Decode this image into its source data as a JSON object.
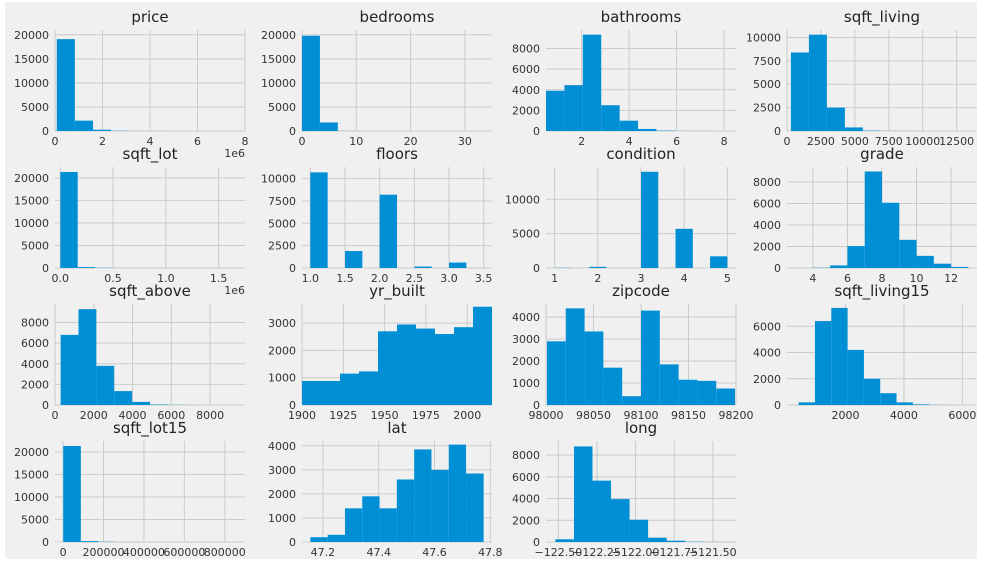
{
  "figure": {
    "background": "#f0f0f0",
    "axes_background": "#f0f0f0",
    "grid_color": "#cbcbcb",
    "bar_color": "#008fd5",
    "style": "fivethirtyeight"
  },
  "chart_data": [
    {
      "type": "bar",
      "title": "price",
      "bin_edges": [
        75000,
        837500,
        1600000,
        2362500,
        3125000,
        3887500,
        4650000,
        5412500,
        6175000,
        6937500,
        7700000
      ],
      "counts": [
        19100,
        2150,
        270,
        50,
        10,
        5,
        3,
        2,
        1,
        1
      ],
      "xlim": [
        0,
        8000000
      ],
      "ylim": [
        0,
        21000
      ],
      "xticks": [
        0,
        2000000,
        4000000,
        6000000,
        8000000
      ],
      "xticklabels": [
        "0",
        "2",
        "4",
        "6",
        "8"
      ],
      "yticks": [
        0,
        5000,
        10000,
        15000,
        20000
      ],
      "yticklabels": [
        "0",
        "5000",
        "10000",
        "15000",
        "20000"
      ],
      "offset_text": "1e6",
      "grid": true
    },
    {
      "type": "bar",
      "title": "bedrooms",
      "bin_edges": [
        0,
        3.3,
        6.6,
        9.9,
        13.2,
        16.5,
        19.8,
        23.1,
        26.4,
        29.7,
        33
      ],
      "counts": [
        19800,
        1780,
        20,
        1,
        0,
        0,
        0,
        0,
        0,
        1
      ],
      "xlim": [
        0,
        35
      ],
      "ylim": [
        0,
        21000
      ],
      "xticks": [
        0,
        10,
        20,
        30
      ],
      "xticklabels": [
        "0",
        "10",
        "20",
        "30"
      ],
      "yticks": [
        0,
        5000,
        10000,
        15000,
        20000
      ],
      "yticklabels": [
        "0",
        "5000",
        "10000",
        "15000",
        "20000"
      ],
      "grid": true
    },
    {
      "type": "bar",
      "title": "bathrooms",
      "bin_edges": [
        0.5,
        1.275,
        2.05,
        2.825,
        3.6,
        4.375,
        5.15,
        5.925,
        6.7,
        7.475,
        8.25
      ],
      "counts": [
        3900,
        4450,
        9350,
        2500,
        1000,
        200,
        40,
        10,
        5,
        2
      ],
      "xlim": [
        0.5,
        8.5
      ],
      "ylim": [
        0,
        9800
      ],
      "xticks": [
        2,
        4,
        6,
        8
      ],
      "xticklabels": [
        "2",
        "4",
        "6",
        "8"
      ],
      "yticks": [
        0,
        2000,
        4000,
        6000,
        8000
      ],
      "yticklabels": [
        "0",
        "2000",
        "4000",
        "6000",
        "8000"
      ],
      "grid": true
    },
    {
      "type": "bar",
      "title": "sqft_living",
      "bin_edges": [
        290,
        1615,
        2940,
        4265,
        5590,
        6915,
        8240,
        9565,
        10890,
        12215,
        13540
      ],
      "counts": [
        8400,
        10300,
        2500,
        380,
        40,
        10,
        5,
        2,
        0,
        1
      ],
      "xlim": [
        0,
        14000
      ],
      "ylim": [
        0,
        10800
      ],
      "xticks": [
        0,
        2500,
        5000,
        7500,
        10000,
        12500
      ],
      "xticklabels": [
        "0",
        "2500",
        "5000",
        "7500",
        "10000",
        "12500"
      ],
      "yticks": [
        0,
        2500,
        5000,
        7500,
        10000
      ],
      "yticklabels": [
        "0",
        "2500",
        "5000",
        "7500",
        "10000"
      ],
      "grid": true
    },
    {
      "type": "bar",
      "title": "sqft_lot",
      "bin_edges": [
        520,
        165000,
        330000,
        495000,
        660000,
        825000,
        990000,
        1155000,
        1320000,
        1485000,
        1650000
      ],
      "counts": [
        21300,
        200,
        50,
        10,
        5,
        2,
        1,
        1,
        0,
        1
      ],
      "xlim": [
        -50000,
        1750000
      ],
      "ylim": [
        0,
        22400
      ],
      "xticks": [
        0,
        500000,
        1000000,
        1500000
      ],
      "xticklabels": [
        "0.0",
        "0.5",
        "1.0",
        "1.5"
      ],
      "yticks": [
        0,
        5000,
        10000,
        15000,
        20000
      ],
      "yticklabels": [
        "0",
        "5000",
        "10000",
        "15000",
        "20000"
      ],
      "offset_text": "1e6",
      "grid": true
    },
    {
      "type": "bar",
      "title": "floors",
      "bin_edges": [
        1,
        1.25,
        1.5,
        1.75,
        2,
        2.25,
        2.5,
        2.75,
        3,
        3.25,
        3.5
      ],
      "counts": [
        10700,
        0,
        1900,
        0,
        8200,
        0,
        160,
        0,
        610,
        8
      ],
      "xlim": [
        0.88,
        3.62
      ],
      "ylim": [
        0,
        11300
      ],
      "xticks": [
        1,
        1.5,
        2,
        2.5,
        3,
        3.5
      ],
      "xticklabels": [
        "1.0",
        "1.5",
        "2.0",
        "2.5",
        "3.0",
        "3.5"
      ],
      "yticks": [
        0,
        2500,
        5000,
        7500,
        10000
      ],
      "yticklabels": [
        "0",
        "2500",
        "5000",
        "7500",
        "10000"
      ],
      "grid": true
    },
    {
      "type": "bar",
      "title": "condition",
      "bin_edges": [
        1,
        1.4,
        1.8,
        2.2,
        2.6,
        3,
        3.4,
        3.8,
        4.2,
        4.6,
        5
      ],
      "counts": [
        30,
        0,
        170,
        0,
        0,
        14000,
        0,
        5700,
        0,
        1700
      ],
      "xlim": [
        0.8,
        5.2
      ],
      "ylim": [
        0,
        14700
      ],
      "xticks": [
        1,
        2,
        3,
        4,
        5
      ],
      "xticklabels": [
        "1",
        "2",
        "3",
        "4",
        "5"
      ],
      "yticks": [
        0,
        5000,
        10000
      ],
      "yticklabels": [
        "0",
        "5000",
        "10000"
      ],
      "grid": true
    },
    {
      "type": "bar",
      "title": "grade",
      "bin_edges": [
        3,
        4,
        5,
        6,
        7,
        8,
        9,
        10,
        11,
        12,
        13
      ],
      "counts": [
        3,
        30,
        240,
        2040,
        8980,
        6070,
        2620,
        1130,
        400,
        100
      ],
      "xlim": [
        2.5,
        13.5
      ],
      "ylim": [
        0,
        9400
      ],
      "xticks": [
        4,
        6,
        8,
        10,
        12
      ],
      "xticklabels": [
        "4",
        "6",
        "8",
        "10",
        "12"
      ],
      "yticks": [
        0,
        2000,
        4000,
        6000,
        8000
      ],
      "yticklabels": [
        "0",
        "2000",
        "4000",
        "6000",
        "8000"
      ],
      "grid": true
    },
    {
      "type": "bar",
      "title": "sqft_above",
      "bin_edges": [
        290,
        1212,
        2134,
        3056,
        3978,
        4900,
        5822,
        6744,
        7666,
        8588,
        9510
      ],
      "counts": [
        6800,
        9300,
        3800,
        1350,
        300,
        50,
        15,
        5,
        2,
        1
      ],
      "xlim": [
        0,
        9800
      ],
      "ylim": [
        0,
        9800
      ],
      "xticks": [
        0,
        2000,
        4000,
        6000,
        8000
      ],
      "xticklabels": [
        "0",
        "2000",
        "4000",
        "6000",
        "8000"
      ],
      "yticks": [
        0,
        2000,
        4000,
        6000,
        8000
      ],
      "yticklabels": [
        "0",
        "2000",
        "4000",
        "6000",
        "8000"
      ],
      "grid": true
    },
    {
      "type": "bar",
      "title": "yr_built",
      "bin_edges": [
        1900,
        1911.5,
        1923,
        1934.5,
        1946,
        1957.5,
        1969,
        1980.5,
        1992,
        2003.5,
        2015
      ],
      "counts": [
        880,
        880,
        1150,
        1230,
        2700,
        2950,
        2800,
        2600,
        2850,
        3600
      ],
      "xlim": [
        1900,
        2015
      ],
      "ylim": [
        0,
        3700
      ],
      "xticks": [
        1900,
        1925,
        1950,
        1975,
        2000
      ],
      "xticklabels": [
        "1900",
        "1925",
        "1950",
        "1975",
        "2000"
      ],
      "yticks": [
        0,
        1000,
        2000,
        3000
      ],
      "yticklabels": [
        "0",
        "1000",
        "2000",
        "3000"
      ],
      "grid": true
    },
    {
      "type": "bar",
      "title": "zipcode",
      "bin_edges": [
        98001,
        98020.8,
        98040.6,
        98060.4,
        98080.2,
        98100,
        98119.8,
        98139.6,
        98159.4,
        98179.2,
        98199
      ],
      "counts": [
        2900,
        4400,
        3350,
        1700,
        400,
        4300,
        1850,
        1150,
        1100,
        750
      ],
      "xlim": [
        98000,
        98200
      ],
      "ylim": [
        0,
        4600
      ],
      "xticks": [
        98000,
        98050,
        98100,
        98150,
        98200
      ],
      "xticklabels": [
        "98000",
        "98050",
        "98100",
        "98150",
        "98200"
      ],
      "yticks": [
        0,
        1000,
        2000,
        3000,
        4000
      ],
      "yticklabels": [
        "0",
        "1000",
        "2000",
        "3000",
        "4000"
      ],
      "grid": true
    },
    {
      "type": "bar",
      "title": "sqft_living15",
      "bin_edges": [
        399,
        957,
        1515,
        2073,
        2631,
        3189,
        3747,
        4305,
        4863,
        5421,
        5979
      ],
      "counts": [
        200,
        6400,
        7400,
        4200,
        2000,
        900,
        200,
        50,
        10,
        5
      ],
      "xlim": [
        0,
        6500
      ],
      "ylim": [
        0,
        7700
      ],
      "xticks": [
        2000,
        4000,
        6000
      ],
      "xticklabels": [
        "2000",
        "4000",
        "6000"
      ],
      "yticks": [
        0,
        2000,
        4000,
        6000
      ],
      "yticklabels": [
        "0",
        "2000",
        "4000",
        "6000"
      ],
      "grid": true
    },
    {
      "type": "bar",
      "title": "sqft_lot15",
      "bin_edges": [
        651,
        87800,
        174900,
        262000,
        349100,
        436200,
        523300,
        610400,
        697500,
        784600,
        871700
      ],
      "counts": [
        21300,
        200,
        50,
        10,
        5,
        2,
        1,
        0,
        0,
        1
      ],
      "xlim": [
        -40000,
        900000
      ],
      "ylim": [
        0,
        22400
      ],
      "xticks": [
        0,
        200000,
        400000,
        600000,
        800000
      ],
      "xticklabels": [
        "0",
        "200000",
        "400000",
        "600000",
        "800000"
      ],
      "yticks": [
        0,
        5000,
        10000,
        15000,
        20000
      ],
      "yticklabels": [
        "0",
        "5000",
        "10000",
        "15000",
        "20000"
      ],
      "grid": true
    },
    {
      "type": "bar",
      "title": "lat",
      "bin_edges": [
        47.155,
        47.217,
        47.279,
        47.341,
        47.403,
        47.465,
        47.527,
        47.589,
        47.651,
        47.713,
        47.776
      ],
      "counts": [
        200,
        300,
        1400,
        1900,
        1400,
        2600,
        3850,
        3000,
        4050,
        2850
      ],
      "xlim": [
        47.125,
        47.806
      ],
      "ylim": [
        0,
        4200
      ],
      "xticks": [
        47.2,
        47.4,
        47.6,
        47.8
      ],
      "xticklabels": [
        "47.2",
        "47.4",
        "47.6",
        "47.8"
      ],
      "yticks": [
        0,
        1000,
        2000,
        3000,
        4000
      ],
      "yticklabels": [
        "0",
        "1000",
        "2000",
        "3000",
        "4000"
      ],
      "grid": true
    },
    {
      "type": "bar",
      "title": "long",
      "bin_edges": [
        -122.519,
        -122.399,
        -122.279,
        -122.159,
        -122.039,
        -121.919,
        -121.799,
        -121.679,
        -121.559,
        -121.439,
        -121.315
      ],
      "counts": [
        250,
        8800,
        5650,
        3950,
        2050,
        400,
        120,
        30,
        10,
        5
      ],
      "xlim": [
        -122.58,
        -121.35
      ],
      "ylim": [
        0,
        9300
      ],
      "xticks": [
        -122.5,
        -122.25,
        -122.0,
        -121.75,
        -121.5
      ],
      "xticklabels": [
        "−122.50",
        "−122.25",
        "−122.00",
        "−121.75",
        "−121.50"
      ],
      "yticks": [
        0,
        2000,
        4000,
        6000,
        8000
      ],
      "yticklabels": [
        "0",
        "2000",
        "4000",
        "6000",
        "8000"
      ],
      "grid": true
    }
  ]
}
